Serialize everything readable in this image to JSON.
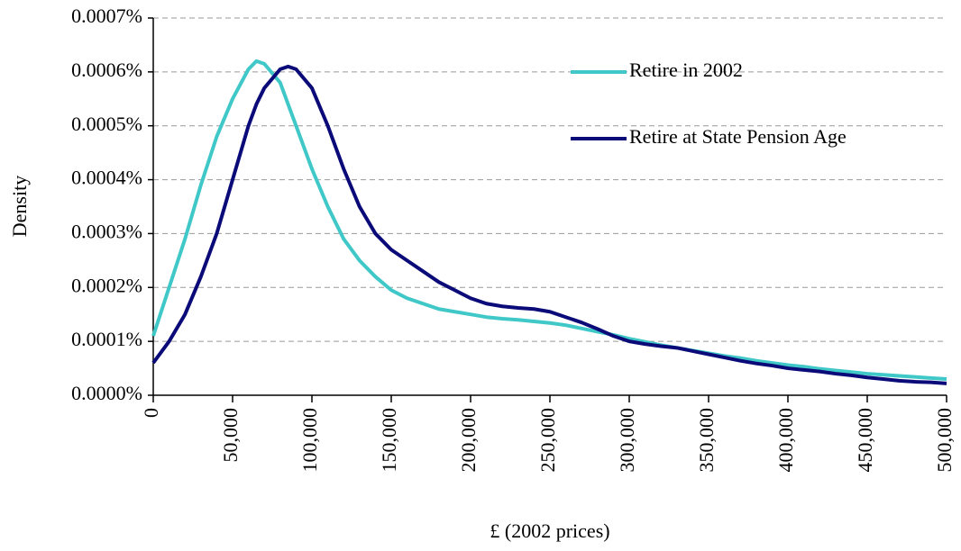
{
  "chart_data": {
    "type": "line",
    "x_label": "£ (2002 prices)",
    "y_label": "Density",
    "x": [
      0,
      10000,
      20000,
      30000,
      40000,
      50000,
      60000,
      65000,
      70000,
      80000,
      85000,
      90000,
      100000,
      110000,
      120000,
      130000,
      140000,
      150000,
      160000,
      170000,
      180000,
      190000,
      200000,
      210000,
      220000,
      230000,
      240000,
      250000,
      260000,
      270000,
      280000,
      290000,
      300000,
      310000,
      320000,
      330000,
      340000,
      350000,
      360000,
      370000,
      380000,
      390000,
      400000,
      410000,
      420000,
      430000,
      440000,
      450000,
      460000,
      470000,
      480000,
      490000,
      500000
    ],
    "series": [
      {
        "name": "Retire in 2002",
        "color": "#40c8c8",
        "values": [
          0.00011,
          0.0002,
          0.00029,
          0.00039,
          0.00048,
          0.00055,
          0.000605,
          0.00062,
          0.000615,
          0.00058,
          0.00054,
          0.0005,
          0.00042,
          0.00035,
          0.00029,
          0.00025,
          0.00022,
          0.000195,
          0.00018,
          0.00017,
          0.00016,
          0.000155,
          0.00015,
          0.000145,
          0.000142,
          0.00014,
          0.000137,
          0.000134,
          0.00013,
          0.000124,
          0.000118,
          0.000112,
          0.000105,
          9.9e-05,
          9.3e-05,
          8.8e-05,
          8.3e-05,
          7.8e-05,
          7.3e-05,
          6.9e-05,
          6.4e-05,
          6e-05,
          5.6e-05,
          5.3e-05,
          4.9e-05,
          4.6e-05,
          4.3e-05,
          4e-05,
          3.8e-05,
          3.6e-05,
          3.4e-05,
          3.2e-05,
          3e-05
        ]
      },
      {
        "name": "Retire at State Pension Age",
        "color": "#0a0a78",
        "values": [
          6e-05,
          0.0001,
          0.00015,
          0.00022,
          0.0003,
          0.0004,
          0.0005,
          0.00054,
          0.00057,
          0.000605,
          0.00061,
          0.000605,
          0.00057,
          0.0005,
          0.00042,
          0.00035,
          0.0003,
          0.00027,
          0.00025,
          0.00023,
          0.00021,
          0.000195,
          0.00018,
          0.00017,
          0.000165,
          0.000162,
          0.00016,
          0.000155,
          0.000145,
          0.000135,
          0.000123,
          0.00011,
          0.0001,
          9.5e-05,
          9.1e-05,
          8.8e-05,
          8.2e-05,
          7.6e-05,
          7e-05,
          6.4e-05,
          5.9e-05,
          5.5e-05,
          5e-05,
          4.7e-05,
          4.4e-05,
          4e-05,
          3.7e-05,
          3.3e-05,
          3e-05,
          2.7e-05,
          2.5e-05,
          2.4e-05,
          2.2e-05
        ]
      }
    ],
    "xlim": [
      0,
      500000
    ],
    "xticks": [
      {
        "value": 0,
        "label": "0"
      },
      {
        "value": 50000,
        "label": "50,000"
      },
      {
        "value": 100000,
        "label": "100,000"
      },
      {
        "value": 150000,
        "label": "150,000"
      },
      {
        "value": 200000,
        "label": "200,000"
      },
      {
        "value": 250000,
        "label": "250,000"
      },
      {
        "value": 300000,
        "label": "300,000"
      },
      {
        "value": 350000,
        "label": "350,000"
      },
      {
        "value": 400000,
        "label": "400,000"
      },
      {
        "value": 450000,
        "label": "450,000"
      },
      {
        "value": 500000,
        "label": "500,000"
      }
    ],
    "ylim": [
      0,
      0.0007
    ],
    "yticks": [
      {
        "value": 0,
        "label": "0.0000%"
      },
      {
        "value": 0.0001,
        "label": "0.0001%"
      },
      {
        "value": 0.0002,
        "label": "0.0002%"
      },
      {
        "value": 0.0003,
        "label": "0.0003%"
      },
      {
        "value": 0.0004,
        "label": "0.0004%"
      },
      {
        "value": 0.0005,
        "label": "0.0005%"
      },
      {
        "value": 0.0006,
        "label": "0.0006%"
      },
      {
        "value": 0.0007,
        "label": "0.0007%"
      }
    ],
    "grid": true,
    "legend": "upper right"
  }
}
